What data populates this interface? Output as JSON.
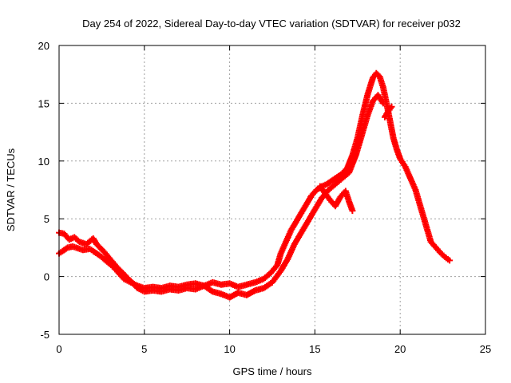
{
  "chart_data": {
    "type": "scatter",
    "title": "Day 254 of 2022, Sidereal Day-to-day VTEC variation (SDTVAR) for receiver p032",
    "xlabel": "GPS time / hours",
    "ylabel": "SDTVAR / TECUs",
    "xlim": [
      0,
      25
    ],
    "ylim": [
      -5,
      20
    ],
    "xticks": [
      0,
      5,
      10,
      15,
      20,
      25
    ],
    "yticks": [
      -5,
      0,
      5,
      10,
      15,
      20
    ],
    "grid": true,
    "marker": "plus",
    "colors": {
      "series": "#ff0000",
      "grid": "#a0a0a0",
      "axis": "#000000"
    },
    "series": [
      {
        "name": "main trace A",
        "x": [
          0.0,
          0.2,
          0.5,
          0.8,
          1.0,
          1.4,
          1.8,
          2.0,
          2.4,
          2.8,
          3.2,
          3.5,
          3.8,
          4.2,
          4.6,
          5.0,
          5.5,
          6.0,
          6.5,
          7.0,
          7.5,
          8.0,
          8.5,
          9.0,
          9.5,
          10.0,
          10.5,
          11.0,
          11.5,
          12.0,
          12.4,
          12.8,
          13.0,
          13.3,
          13.6,
          14.0,
          14.4,
          14.8,
          15.1,
          15.4,
          15.7,
          16.0,
          16.3,
          16.6,
          16.9,
          17.2,
          17.5,
          17.8,
          18.1,
          18.4,
          18.6,
          18.8,
          19.0,
          19.2,
          19.4,
          19.6,
          19.8,
          20.0,
          20.3,
          20.6,
          20.9,
          21.2,
          21.5,
          21.8,
          22.1,
          22.4,
          22.7,
          22.9
        ],
        "y": [
          2.0,
          2.2,
          2.5,
          2.6,
          2.5,
          2.3,
          2.4,
          2.2,
          1.8,
          1.3,
          0.8,
          0.3,
          -0.2,
          -0.5,
          -0.8,
          -1.0,
          -0.9,
          -1.0,
          -0.8,
          -0.9,
          -0.7,
          -0.6,
          -0.8,
          -0.5,
          -0.7,
          -0.6,
          -0.9,
          -0.7,
          -0.5,
          -0.2,
          0.3,
          1.0,
          2.0,
          3.0,
          4.0,
          5.0,
          6.0,
          7.0,
          7.5,
          7.8,
          8.0,
          8.3,
          8.6,
          8.9,
          9.4,
          10.5,
          12.0,
          14.0,
          15.8,
          17.2,
          17.6,
          17.3,
          16.4,
          15.0,
          13.5,
          12.0,
          11.0,
          10.2,
          9.5,
          8.5,
          7.5,
          6.0,
          4.5,
          3.0,
          2.5,
          2.0,
          1.6,
          1.4
        ]
      },
      {
        "name": "main trace B",
        "x": [
          0.0,
          0.3,
          0.6,
          0.9,
          1.2,
          1.6,
          2.0,
          2.2,
          2.6,
          3.0,
          3.4,
          3.8,
          4.2,
          4.6,
          5.0,
          5.5,
          6.0,
          6.5,
          7.0,
          7.5,
          8.0,
          8.5,
          9.0,
          9.5,
          10.0,
          10.5,
          11.0,
          11.5,
          12.0,
          12.5,
          13.0,
          13.4,
          13.8,
          14.2,
          14.6,
          15.0,
          15.4,
          15.8,
          16.2,
          16.6,
          17.0,
          17.4,
          17.8,
          18.1,
          18.4,
          18.7,
          19.0
        ],
        "y": [
          3.8,
          3.7,
          3.2,
          3.4,
          3.0,
          2.8,
          3.3,
          2.8,
          2.2,
          1.5,
          0.8,
          0.2,
          -0.4,
          -1.0,
          -1.3,
          -1.2,
          -1.3,
          -1.1,
          -1.2,
          -1.0,
          -1.1,
          -0.8,
          -1.3,
          -1.5,
          -1.8,
          -1.4,
          -1.6,
          -1.2,
          -1.0,
          -0.5,
          0.5,
          1.5,
          2.8,
          3.8,
          4.8,
          5.8,
          6.8,
          7.5,
          8.0,
          8.5,
          9.0,
          10.5,
          12.5,
          14.0,
          15.2,
          15.7,
          15.0
        ]
      },
      {
        "name": "secondary trace",
        "x": [
          15.3,
          15.6,
          15.9,
          16.2,
          16.5,
          16.8,
          17.0,
          17.2
        ],
        "y": [
          7.8,
          7.2,
          6.6,
          6.1,
          6.9,
          7.4,
          6.5,
          5.7
        ]
      },
      {
        "name": "trailing segment",
        "x": [
          19.1,
          19.3,
          19.5
        ],
        "y": [
          13.8,
          14.3,
          14.7
        ]
      }
    ]
  }
}
